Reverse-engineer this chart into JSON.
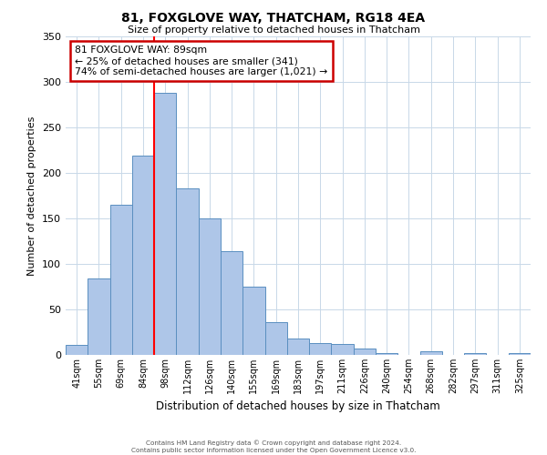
{
  "title": "81, FOXGLOVE WAY, THATCHAM, RG18 4EA",
  "subtitle": "Size of property relative to detached houses in Thatcham",
  "xlabel": "Distribution of detached houses by size in Thatcham",
  "ylabel": "Number of detached properties",
  "bin_labels": [
    "41sqm",
    "55sqm",
    "69sqm",
    "84sqm",
    "98sqm",
    "112sqm",
    "126sqm",
    "140sqm",
    "155sqm",
    "169sqm",
    "183sqm",
    "197sqm",
    "211sqm",
    "226sqm",
    "240sqm",
    "254sqm",
    "268sqm",
    "282sqm",
    "297sqm",
    "311sqm",
    "325sqm"
  ],
  "bar_values": [
    11,
    84,
    165,
    219,
    288,
    183,
    150,
    114,
    75,
    36,
    18,
    13,
    12,
    7,
    2,
    0,
    4,
    0,
    2,
    0,
    2
  ],
  "bar_color": "#aec6e8",
  "bar_edge_color": "#5a8fc0",
  "red_line_x": 4,
  "annotation_title": "81 FOXGLOVE WAY: 89sqm",
  "annotation_line1": "← 25% of detached houses are smaller (341)",
  "annotation_line2": "74% of semi-detached houses are larger (1,021) →",
  "annotation_box_color": "#ffffff",
  "annotation_box_edge": "#cc0000",
  "ylim": [
    0,
    350
  ],
  "yticks": [
    0,
    50,
    100,
    150,
    200,
    250,
    300,
    350
  ],
  "footer_line1": "Contains HM Land Registry data © Crown copyright and database right 2024.",
  "footer_line2": "Contains public sector information licensed under the Open Government Licence v3.0.",
  "background_color": "#ffffff",
  "grid_color": "#c8d8e8"
}
